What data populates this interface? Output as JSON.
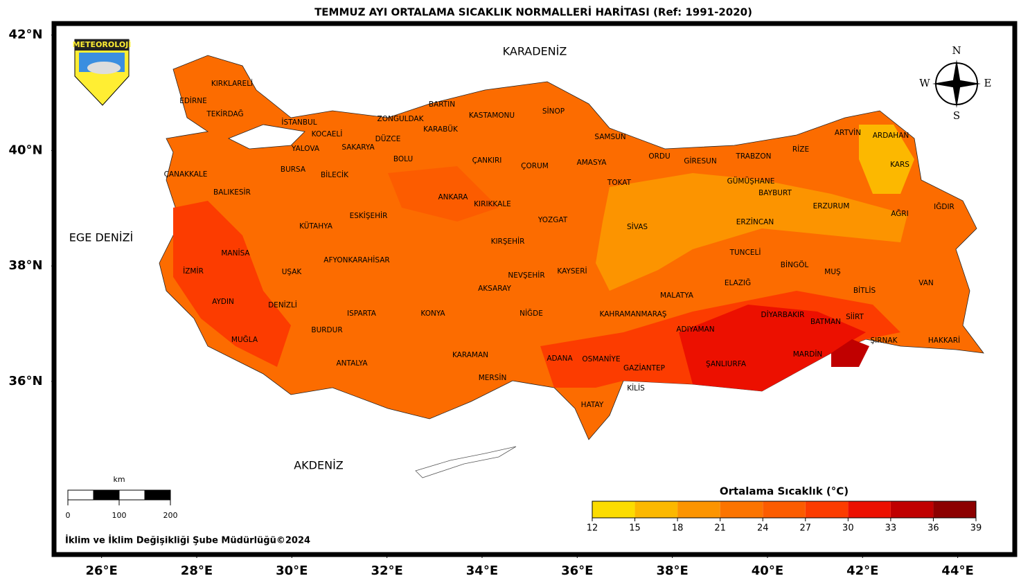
{
  "title": "TEMMUZ AYI ORTALAMA SICAKLIK NORMALLERİ HARİTASI (Ref: 1991-2020)",
  "logo": "METEOROLOJİ",
  "map": {
    "lonlim": [
      25,
      45.2
    ],
    "latlim": [
      33,
      42.2
    ],
    "lat_ticks": [
      {
        "value": 42,
        "label": "42°N"
      },
      {
        "value": 40,
        "label": "40°N"
      },
      {
        "value": 38,
        "label": "38°N"
      },
      {
        "value": 36,
        "label": "36°N"
      }
    ],
    "lon_ticks": [
      {
        "value": 26,
        "label": "26°E"
      },
      {
        "value": 28,
        "label": "28°E"
      },
      {
        "value": 30,
        "label": "30°E"
      },
      {
        "value": 32,
        "label": "32°E"
      },
      {
        "value": 34,
        "label": "34°E"
      },
      {
        "value": 36,
        "label": "36°E"
      },
      {
        "value": 38,
        "label": "38°E"
      },
      {
        "value": 40,
        "label": "40°E"
      },
      {
        "value": 42,
        "label": "42°E"
      },
      {
        "value": 44,
        "label": "44°E"
      }
    ]
  },
  "seas": [
    "KARADENİZ",
    "EGE DENİZİ",
    "AKDENİZ"
  ],
  "compass": [
    "N",
    "S",
    "W",
    "E"
  ],
  "provinces": [
    "KIRKLARELİ",
    "EDİRNE",
    "TEKİRDAĞ",
    "İSTANBUL",
    "KOCAELİ",
    "YALOVA",
    "SAKARYA",
    "ZONGULDAK",
    "BARTIN",
    "KASTAMONU",
    "SİNOP",
    "KARABÜK",
    "DÜZCE",
    "BOLU",
    "ÇANKIRI",
    "ÇORUM",
    "AMASYA",
    "SAMSUN",
    "ORDU",
    "GİRESUN",
    "TRABZON",
    "RİZE",
    "ARTVİN",
    "ARDAHAN",
    "KARS",
    "ÇANAKKALE",
    "BURSA",
    "BİLECİK",
    "BALIKESİR",
    "ANKARA",
    "KIRIKKALE",
    "TOKAT",
    "GÜMÜŞHANE",
    "BAYBURT",
    "ERZURUM",
    "IĞDIR",
    "AĞRI",
    "ESKİŞEHİR",
    "KÜTAHYA",
    "YOZGAT",
    "SİVAS",
    "ERZİNCAN",
    "KIRŞEHİR",
    "MANİSA",
    "TUNCELİ",
    "BİNGÖL",
    "MUŞ",
    "İZMİR",
    "UŞAK",
    "AFYONKARAHİSAR",
    "NEVŞEHİR",
    "KAYSERİ",
    "VAN",
    "ELAZIĞ",
    "BİTLİS",
    "AKSARAY",
    "MALATYA",
    "AYDIN",
    "DENİZLİ",
    "ISPARTA",
    "KONYA",
    "NİĞDE",
    "KAHRAMANMARAŞ",
    "DİYARBAKIR",
    "SİİRT",
    "BATMAN",
    "BURDUR",
    "ADIYAMAN",
    "MUĞLA",
    "ŞIRNAK",
    "HAKKARİ",
    "KARAMAN",
    "ANTALYA",
    "ADANA",
    "OSMANİYE",
    "ŞANLIURFA",
    "MARDİN",
    "GAZİANTEP",
    "MERSİN",
    "KİLİS",
    "HATAY"
  ],
  "scale": {
    "unit": "km",
    "ticks": [
      0,
      100,
      200
    ]
  },
  "colorbar": {
    "title": "Ortalama Sıcaklık (°C)",
    "ticks": [
      12,
      15,
      18,
      21,
      24,
      27,
      30,
      33,
      36,
      39
    ],
    "colors": [
      "#fcdc00",
      "#fcb800",
      "#fc9400",
      "#fc7400",
      "#fc5c00",
      "#fc3c00",
      "#ec1000",
      "#c00000",
      "#8c0000"
    ]
  },
  "credit": "İklim ve İklim Değişikliği Şube Müdürlüğü©2024"
}
